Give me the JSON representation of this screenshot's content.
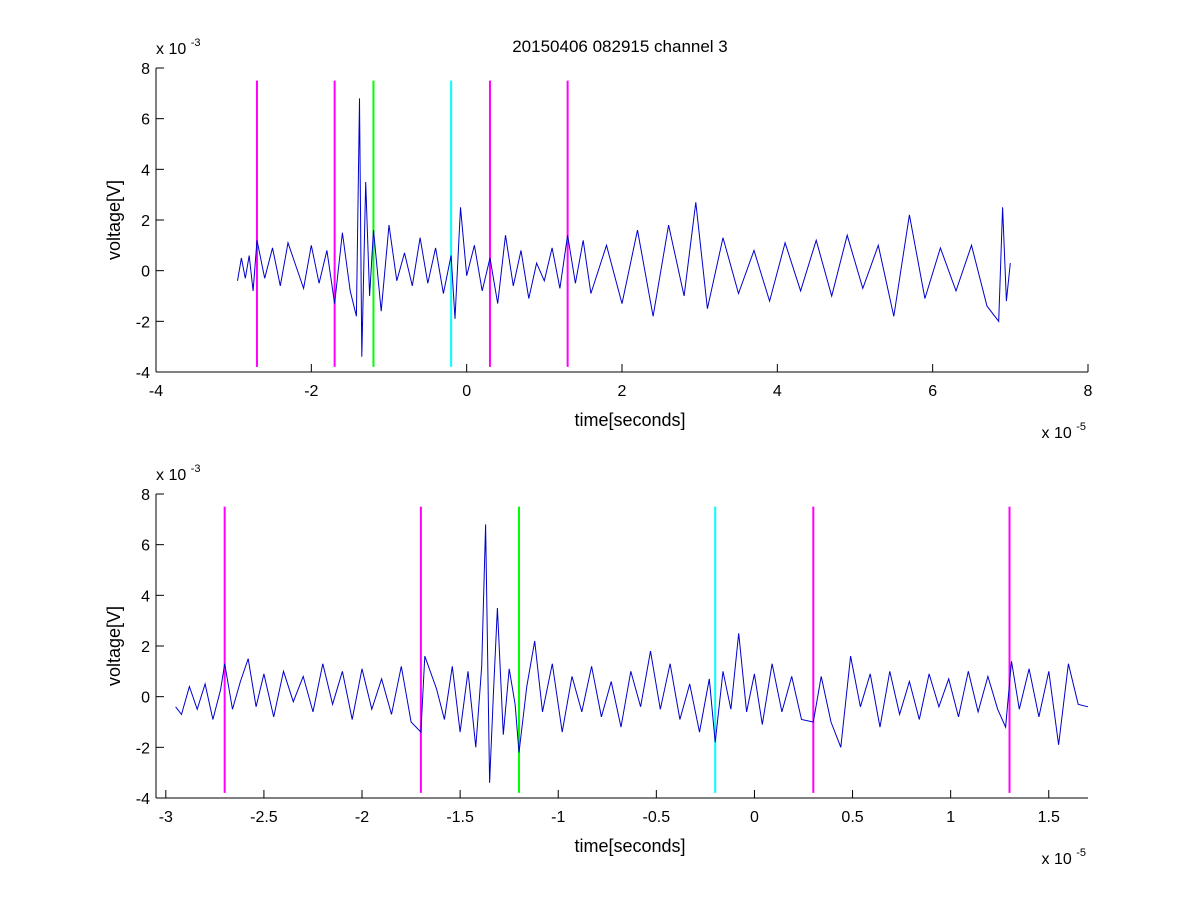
{
  "figure": {
    "background": "#ffffff",
    "title": "20150406 082915 channel 3"
  },
  "colors": {
    "signal": "#0000cc",
    "magenta": "#ff00ff",
    "green": "#00ff00",
    "cyan": "#00ffff",
    "axes": "#000000"
  },
  "chart_data": [
    {
      "type": "line",
      "title": "20150406 082915 channel 3",
      "xlabel": "time[seconds]",
      "ylabel": "voltage[V]",
      "x_exponent_label": "x 10",
      "x_exponent": "-5",
      "y_exponent_label": "x 10",
      "y_exponent": "-3",
      "xlim": [
        -4,
        8
      ],
      "ylim": [
        -4,
        8
      ],
      "xticks": [
        -4,
        -2,
        0,
        2,
        4,
        6,
        8
      ],
      "xtick_labels": [
        "-4",
        "-2",
        "0",
        "2",
        "4",
        "6",
        "8"
      ],
      "yticks": [
        -4,
        -2,
        0,
        2,
        4,
        6,
        8
      ],
      "ytick_labels": [
        "-4",
        "-2",
        "0",
        "2",
        "4",
        "6",
        "8"
      ],
      "grid": false,
      "series": [
        {
          "color": "#0000cc",
          "x_range": [
            -2.95,
            7.0
          ],
          "points": [
            [
              -2.95,
              -0.4
            ],
            [
              -2.9,
              0.5
            ],
            [
              -2.85,
              -0.3
            ],
            [
              -2.8,
              0.6
            ],
            [
              -2.75,
              -0.8
            ],
            [
              -2.7,
              1.2
            ],
            [
              -2.6,
              -0.3
            ],
            [
              -2.5,
              0.9
            ],
            [
              -2.4,
              -0.6
            ],
            [
              -2.3,
              1.1
            ],
            [
              -2.2,
              0.2
            ],
            [
              -2.1,
              -0.7
            ],
            [
              -2.0,
              1.0
            ],
            [
              -1.9,
              -0.5
            ],
            [
              -1.8,
              0.8
            ],
            [
              -1.7,
              -1.3
            ],
            [
              -1.6,
              1.5
            ],
            [
              -1.5,
              -0.8
            ],
            [
              -1.42,
              -1.8
            ],
            [
              -1.38,
              6.8
            ],
            [
              -1.35,
              -3.4
            ],
            [
              -1.3,
              3.5
            ],
            [
              -1.25,
              -1.0
            ],
            [
              -1.2,
              1.6
            ],
            [
              -1.1,
              -1.6
            ],
            [
              -1.0,
              1.8
            ],
            [
              -0.9,
              -0.4
            ],
            [
              -0.8,
              0.7
            ],
            [
              -0.7,
              -0.6
            ],
            [
              -0.6,
              1.3
            ],
            [
              -0.5,
              -0.5
            ],
            [
              -0.4,
              0.9
            ],
            [
              -0.3,
              -0.9
            ],
            [
              -0.2,
              0.6
            ],
            [
              -0.15,
              -1.9
            ],
            [
              -0.08,
              2.5
            ],
            [
              0.0,
              -0.2
            ],
            [
              0.1,
              1.0
            ],
            [
              0.2,
              -0.8
            ],
            [
              0.3,
              0.5
            ],
            [
              0.4,
              -1.3
            ],
            [
              0.5,
              1.4
            ],
            [
              0.6,
              -0.6
            ],
            [
              0.7,
              0.8
            ],
            [
              0.8,
              -1.1
            ],
            [
              0.9,
              0.3
            ],
            [
              1.0,
              -0.4
            ],
            [
              1.1,
              0.9
            ],
            [
              1.2,
              -0.7
            ],
            [
              1.3,
              1.4
            ],
            [
              1.4,
              -0.5
            ],
            [
              1.5,
              1.2
            ],
            [
              1.6,
              -0.9
            ],
            [
              1.8,
              1.0
            ],
            [
              2.0,
              -1.3
            ],
            [
              2.2,
              1.6
            ],
            [
              2.4,
              -1.8
            ],
            [
              2.6,
              1.8
            ],
            [
              2.8,
              -1.0
            ],
            [
              2.95,
              2.7
            ],
            [
              3.1,
              -1.5
            ],
            [
              3.3,
              1.3
            ],
            [
              3.5,
              -0.9
            ],
            [
              3.7,
              0.8
            ],
            [
              3.9,
              -1.2
            ],
            [
              4.1,
              1.1
            ],
            [
              4.3,
              -0.8
            ],
            [
              4.5,
              1.2
            ],
            [
              4.7,
              -1.0
            ],
            [
              4.9,
              1.4
            ],
            [
              5.1,
              -0.7
            ],
            [
              5.3,
              1.0
            ],
            [
              5.5,
              -1.8
            ],
            [
              5.7,
              2.2
            ],
            [
              5.9,
              -1.1
            ],
            [
              6.1,
              0.9
            ],
            [
              6.3,
              -0.8
            ],
            [
              6.5,
              1.0
            ],
            [
              6.7,
              -1.4
            ],
            [
              6.85,
              -2.0
            ],
            [
              6.9,
              2.5
            ],
            [
              6.95,
              -1.2
            ],
            [
              7.0,
              0.3
            ]
          ]
        }
      ],
      "vlines": [
        {
          "x": -2.7,
          "color": "#ff00ff"
        },
        {
          "x": -1.7,
          "color": "#ff00ff"
        },
        {
          "x": -1.2,
          "color": "#00ff00"
        },
        {
          "x": -0.2,
          "color": "#00ffff"
        },
        {
          "x": 0.3,
          "color": "#ff00ff"
        },
        {
          "x": 1.3,
          "color": "#ff00ff"
        }
      ],
      "vline_range": [
        -3.8,
        7.5
      ]
    },
    {
      "type": "line",
      "xlabel": "time[seconds]",
      "ylabel": "voltage[V]",
      "x_exponent_label": "x 10",
      "x_exponent": "-5",
      "y_exponent_label": "x 10",
      "y_exponent": "-3",
      "xlim": [
        -3.05,
        1.7
      ],
      "ylim": [
        -4,
        8
      ],
      "xticks": [
        -3,
        -2.5,
        -2,
        -1.5,
        -1,
        -0.5,
        0,
        0.5,
        1,
        1.5
      ],
      "xtick_labels": [
        "-3",
        "-2.5",
        "-2",
        "-1.5",
        "-1",
        "-0.5",
        "0",
        "0.5",
        "1",
        "1.5"
      ],
      "yticks": [
        -4,
        -2,
        0,
        2,
        4,
        6,
        8
      ],
      "ytick_labels": [
        "-4",
        "-2",
        "0",
        "2",
        "4",
        "6",
        "8"
      ],
      "grid": false,
      "series": [
        {
          "color": "#0000cc",
          "x_range": [
            -2.95,
            1.7
          ],
          "points": [
            [
              -2.95,
              -0.4
            ],
            [
              -2.92,
              -0.7
            ],
            [
              -2.88,
              0.4
            ],
            [
              -2.84,
              -0.5
            ],
            [
              -2.8,
              0.5
            ],
            [
              -2.76,
              -0.9
            ],
            [
              -2.72,
              0.3
            ],
            [
              -2.7,
              1.3
            ],
            [
              -2.66,
              -0.5
            ],
            [
              -2.62,
              0.6
            ],
            [
              -2.58,
              1.5
            ],
            [
              -2.54,
              -0.4
            ],
            [
              -2.5,
              0.9
            ],
            [
              -2.45,
              -0.8
            ],
            [
              -2.4,
              1.0
            ],
            [
              -2.35,
              -0.2
            ],
            [
              -2.3,
              0.8
            ],
            [
              -2.25,
              -0.6
            ],
            [
              -2.2,
              1.3
            ],
            [
              -2.15,
              -0.3
            ],
            [
              -2.1,
              1.0
            ],
            [
              -2.05,
              -0.9
            ],
            [
              -2.0,
              1.1
            ],
            [
              -1.95,
              -0.5
            ],
            [
              -1.9,
              0.7
            ],
            [
              -1.85,
              -0.7
            ],
            [
              -1.8,
              1.2
            ],
            [
              -1.75,
              -1.0
            ],
            [
              -1.7,
              -1.4
            ],
            [
              -1.68,
              1.6
            ],
            [
              -1.62,
              0.3
            ],
            [
              -1.58,
              -0.9
            ],
            [
              -1.54,
              1.2
            ],
            [
              -1.5,
              -1.4
            ],
            [
              -1.46,
              1.0
            ],
            [
              -1.42,
              -2.0
            ],
            [
              -1.39,
              1.2
            ],
            [
              -1.37,
              6.8
            ],
            [
              -1.35,
              -3.4
            ],
            [
              -1.33,
              0.2
            ],
            [
              -1.31,
              3.5
            ],
            [
              -1.28,
              -1.5
            ],
            [
              -1.25,
              1.1
            ],
            [
              -1.22,
              -0.3
            ],
            [
              -1.2,
              -2.2
            ],
            [
              -1.16,
              0.4
            ],
            [
              -1.12,
              2.2
            ],
            [
              -1.08,
              -0.6
            ],
            [
              -1.03,
              1.3
            ],
            [
              -0.98,
              -1.4
            ],
            [
              -0.93,
              0.8
            ],
            [
              -0.88,
              -0.6
            ],
            [
              -0.83,
              1.2
            ],
            [
              -0.78,
              -0.8
            ],
            [
              -0.73,
              0.6
            ],
            [
              -0.68,
              -1.2
            ],
            [
              -0.63,
              1.0
            ],
            [
              -0.58,
              -0.4
            ],
            [
              -0.53,
              1.8
            ],
            [
              -0.48,
              -0.5
            ],
            [
              -0.43,
              1.3
            ],
            [
              -0.38,
              -0.9
            ],
            [
              -0.33,
              0.5
            ],
            [
              -0.28,
              -1.4
            ],
            [
              -0.23,
              0.7
            ],
            [
              -0.2,
              -1.8
            ],
            [
              -0.16,
              1.0
            ],
            [
              -0.12,
              -0.5
            ],
            [
              -0.08,
              2.5
            ],
            [
              -0.04,
              -0.6
            ],
            [
              0.0,
              0.9
            ],
            [
              0.04,
              -1.1
            ],
            [
              0.09,
              1.3
            ],
            [
              0.14,
              -0.6
            ],
            [
              0.19,
              0.8
            ],
            [
              0.24,
              -0.9
            ],
            [
              0.3,
              -1.0
            ],
            [
              0.34,
              0.8
            ],
            [
              0.39,
              -1.0
            ],
            [
              0.44,
              -2.0
            ],
            [
              0.49,
              1.6
            ],
            [
              0.54,
              -0.4
            ],
            [
              0.59,
              0.9
            ],
            [
              0.64,
              -1.2
            ],
            [
              0.69,
              1.0
            ],
            [
              0.74,
              -0.7
            ],
            [
              0.79,
              0.6
            ],
            [
              0.84,
              -0.9
            ],
            [
              0.89,
              0.9
            ],
            [
              0.94,
              -0.4
            ],
            [
              0.99,
              0.7
            ],
            [
              1.04,
              -0.8
            ],
            [
              1.09,
              1.0
            ],
            [
              1.14,
              -0.6
            ],
            [
              1.19,
              0.8
            ],
            [
              1.24,
              -0.5
            ],
            [
              1.28,
              -1.2
            ],
            [
              1.31,
              1.4
            ],
            [
              1.35,
              -0.5
            ],
            [
              1.4,
              1.1
            ],
            [
              1.45,
              -0.8
            ],
            [
              1.5,
              1.0
            ],
            [
              1.55,
              -1.9
            ],
            [
              1.6,
              1.3
            ],
            [
              1.65,
              -0.3
            ],
            [
              1.7,
              -0.4
            ]
          ]
        }
      ],
      "vlines": [
        {
          "x": -2.7,
          "color": "#ff00ff"
        },
        {
          "x": -1.7,
          "color": "#ff00ff"
        },
        {
          "x": -1.2,
          "color": "#00ff00"
        },
        {
          "x": -0.2,
          "color": "#00ffff"
        },
        {
          "x": 0.3,
          "color": "#ff00ff"
        },
        {
          "x": 1.3,
          "color": "#ff00ff"
        }
      ],
      "vline_range": [
        -3.8,
        7.5
      ]
    }
  ]
}
